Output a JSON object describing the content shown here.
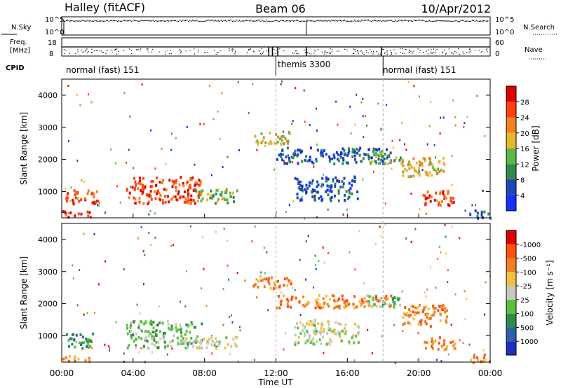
{
  "header": {
    "station": "Halley (fitACF)",
    "beam": "Beam 06",
    "date": "10/Apr/2012"
  },
  "top_panels": {
    "nsky_label": "N.Sky",
    "nsearch_label": "N.Search",
    "freq_label_line1": "Freq.",
    "freq_label_line2": "[MHz]",
    "nave_label": "Nave",
    "cpid_label": "CPID",
    "noise_ticks_left": [
      "10^5",
      "10^0"
    ],
    "noise_ticks_right": [
      "10^5",
      "10^0"
    ],
    "freq_ticks_left": [
      "18",
      "8"
    ],
    "nave_ticks_right": [
      "60",
      "0"
    ],
    "cpid_segments": [
      {
        "label": "normal (fast) 151",
        "start_h": 0,
        "end_h": 12
      },
      {
        "label": "themis 3300",
        "start_h": 12,
        "end_h": 18
      },
      {
        "label": "normal (fast) 151",
        "start_h": 18,
        "end_h": 24
      }
    ]
  },
  "x_axis": {
    "label": "Time UT",
    "ticks": [
      "00:00",
      "04:00",
      "08:00",
      "12:00",
      "16:00",
      "20:00",
      "00:00"
    ],
    "range_hours": [
      0,
      24
    ]
  },
  "chart_data": [
    {
      "type": "heatmap",
      "name": "power",
      "ylabel": "Slant Range [km]",
      "yticks": [
        1000,
        2000,
        3000,
        4000
      ],
      "ylim": [
        180,
        4500
      ],
      "xlim_hours": [
        0,
        24
      ],
      "colorbar": {
        "label": "Power [dB]",
        "ticks": [
          "4",
          "8",
          "12",
          "16",
          "20",
          "24",
          "28"
        ],
        "colors": [
          "#1430ff",
          "#1f47b4",
          "#2f8a4a",
          "#5ab84a",
          "#e6b830",
          "#f08020",
          "#ff4010",
          "#e00000"
        ]
      },
      "regions": [
        {
          "t0": 0.2,
          "t1": 2.0,
          "r0": 650,
          "r1": 1100,
          "level": 6
        },
        {
          "t0": 0.0,
          "t1": 1.6,
          "r0": 220,
          "r1": 420,
          "level": 6
        },
        {
          "t0": 3.6,
          "t1": 7.8,
          "r0": 650,
          "r1": 1500,
          "level": 6
        },
        {
          "t0": 7.4,
          "t1": 9.8,
          "r0": 650,
          "r1": 1100,
          "level": 3
        },
        {
          "t0": 10.6,
          "t1": 12.8,
          "r0": 2500,
          "r1": 2900,
          "level": 4
        },
        {
          "t0": 12.0,
          "t1": 18.4,
          "r0": 1900,
          "r1": 2400,
          "level": 1
        },
        {
          "t0": 13.0,
          "t1": 16.6,
          "r0": 750,
          "r1": 1500,
          "level": 1
        },
        {
          "t0": 17.0,
          "t1": 19.0,
          "r0": 1900,
          "r1": 2300,
          "level": 3
        },
        {
          "t0": 19.0,
          "t1": 21.4,
          "r0": 1500,
          "r1": 2100,
          "level": 4
        },
        {
          "t0": 20.2,
          "t1": 22.0,
          "r0": 600,
          "r1": 1100,
          "level": 6
        },
        {
          "t0": 22.8,
          "t1": 24.0,
          "r0": 200,
          "r1": 450,
          "level": 1
        }
      ]
    },
    {
      "type": "heatmap",
      "name": "velocity",
      "ylabel": "Slant Range [km]",
      "yticks": [
        1000,
        2000,
        3000,
        4000
      ],
      "ylim": [
        180,
        4500
      ],
      "xlim_hours": [
        0,
        24
      ],
      "colorbar": {
        "label": "Velocity [m s⁻¹]",
        "ticks": [
          "1000",
          "500",
          "100",
          "25",
          "-25",
          "-100",
          "-500",
          "-1000"
        ],
        "colors": [
          "#1e30c0",
          "#2e5fa8",
          "#2f8a4a",
          "#5ac040",
          "#c8c8c0",
          "#f2c040",
          "#f08020",
          "#ff5010",
          "#e00000"
        ]
      },
      "regions": [
        {
          "t0": 0.2,
          "t1": 2.0,
          "r0": 650,
          "r1": 1100,
          "level": 2
        },
        {
          "t0": 0.0,
          "t1": 1.6,
          "r0": 220,
          "r1": 420,
          "level": 6
        },
        {
          "t0": 3.6,
          "t1": 7.8,
          "r0": 650,
          "r1": 1500,
          "level": 3
        },
        {
          "t0": 6.6,
          "t1": 9.8,
          "r0": 650,
          "r1": 1000,
          "level": 4
        },
        {
          "t0": 10.6,
          "t1": 12.8,
          "r0": 2500,
          "r1": 2900,
          "level": 6
        },
        {
          "t0": 12.0,
          "t1": 18.4,
          "r0": 1900,
          "r1": 2300,
          "level": 6
        },
        {
          "t0": 13.0,
          "t1": 16.6,
          "r0": 750,
          "r1": 1500,
          "level": 4
        },
        {
          "t0": 17.0,
          "t1": 19.0,
          "r0": 1900,
          "r1": 2300,
          "level": 3
        },
        {
          "t0": 19.0,
          "t1": 21.6,
          "r0": 1300,
          "r1": 2000,
          "level": 6
        },
        {
          "t0": 20.2,
          "t1": 22.0,
          "r0": 600,
          "r1": 1000,
          "level": 6
        },
        {
          "t0": 22.8,
          "t1": 24.0,
          "r0": 200,
          "r1": 450,
          "level": 6
        }
      ]
    }
  ]
}
